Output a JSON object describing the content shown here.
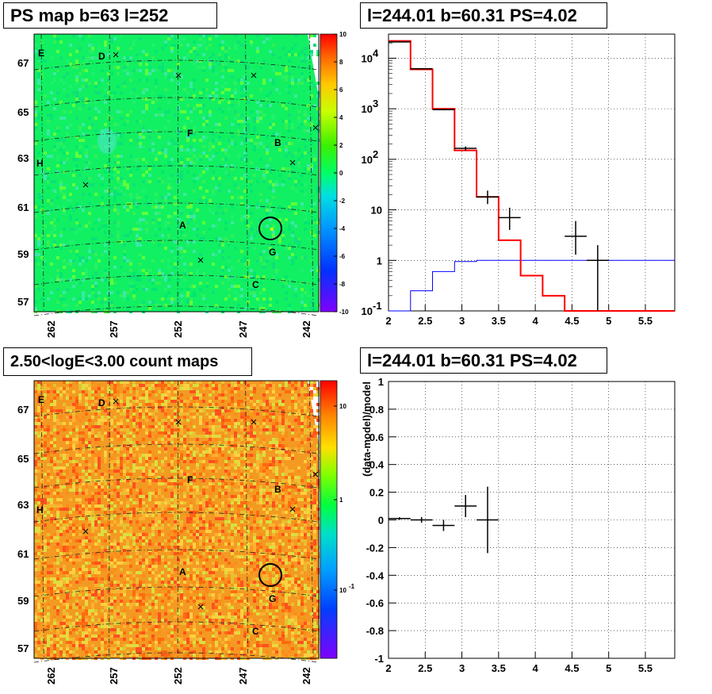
{
  "titles": {
    "ps_map": "PS map b=63 l=252",
    "spectrum": "l=244.01 b=60.31 PS=4.02",
    "count_maps": "2.50<logE<3.00 count maps",
    "residual": "l=244.01 b=60.31 PS=4.02"
  },
  "map_axes": {
    "lon_ticks": [
      "262",
      "257",
      "252",
      "247",
      "242"
    ],
    "lat_ticks": [
      "67",
      "65",
      "63",
      "61",
      "59",
      "57"
    ]
  },
  "source_labels": [
    "E",
    "D",
    "F",
    "B",
    "H",
    "A",
    "G",
    "C"
  ],
  "ps_colorbar_ticks": [
    "10",
    "8",
    "6",
    "4",
    "2",
    "0",
    "-2",
    "-4",
    "-6",
    "-8",
    "-10"
  ],
  "count_colorbar_ticks": [
    "10",
    "1",
    "10",
    "-1"
  ],
  "colors": {
    "ps_map_base": "#11f062",
    "count_map_base": "#f39a22",
    "model_line": "#ff0000",
    "background_line": "#0000ff",
    "data_points": "#000000"
  },
  "chart_data": [
    {
      "type": "heatmap",
      "title": "PS map b=63 l=252",
      "x_ticks": [
        "262",
        "257",
        "252",
        "247",
        "242"
      ],
      "y_ticks": [
        "67",
        "65",
        "63",
        "61",
        "59",
        "57"
      ],
      "z_range": [
        -10,
        10
      ],
      "annotations": [
        "E",
        "D",
        "F",
        "B",
        "H",
        "A",
        "G",
        "C"
      ]
    },
    {
      "type": "line",
      "title": "l=244.01 b=60.31 PS=4.02",
      "xlim": [
        2,
        5.9
      ],
      "ylim": [
        0.1,
        30000
      ],
      "y_scale": "log",
      "x_ticks": [
        "2",
        "2.5",
        "3",
        "3.5",
        "4",
        "4.5",
        "5",
        "5.5"
      ],
      "y_ticks": [
        "10^4",
        "10^3",
        "10^2",
        "10",
        "1",
        "10^-1"
      ],
      "series": [
        {
          "edges": [
            2.0,
            2.3,
            2.6,
            2.9,
            3.2,
            3.5,
            3.8,
            4.1,
            4.4,
            4.7,
            5.0,
            5.3,
            5.6,
            5.9
          ],
          "values": [
            22000,
            6000,
            1000,
            150,
            18,
            2.5,
            0.5,
            0.2,
            0.1,
            0.1,
            0.1,
            0.1,
            0.1
          ]
        },
        {
          "edges": [
            2.0,
            2.3,
            2.6,
            2.9,
            3.2,
            3.5,
            3.8,
            4.1,
            4.4,
            4.7,
            5.0,
            5.3,
            5.6,
            5.9
          ],
          "values": [
            0.1,
            0.25,
            0.6,
            0.95,
            1,
            1,
            1,
            1,
            1,
            1,
            1,
            1,
            1
          ]
        },
        {
          "points": [
            {
              "x": 2.15,
              "y": 21000,
              "xerr": 0.15,
              "ylo": 20500,
              "yhi": 21500
            },
            {
              "x": 2.45,
              "y": 6200,
              "xerr": 0.15,
              "ylo": 6050,
              "yhi": 6350
            },
            {
              "x": 2.75,
              "y": 960,
              "xerr": 0.15,
              "ylo": 930,
              "yhi": 990
            },
            {
              "x": 3.05,
              "y": 165,
              "xerr": 0.15,
              "ylo": 150,
              "yhi": 180
            },
            {
              "x": 3.35,
              "y": 18,
              "xerr": 0.15,
              "ylo": 13,
              "yhi": 24
            },
            {
              "x": 3.65,
              "y": 7,
              "xerr": 0.15,
              "ylo": 4,
              "yhi": 11
            },
            {
              "x": 4.55,
              "y": 3,
              "xerr": 0.15,
              "ylo": 1.3,
              "yhi": 6
            },
            {
              "x": 4.85,
              "y": 1,
              "xerr": 0.15,
              "ylo": 0.1,
              "yhi": 2
            }
          ]
        }
      ]
    },
    {
      "type": "heatmap",
      "title": "2.50<logE<3.00 count maps",
      "x_ticks": [
        "262",
        "257",
        "252",
        "247",
        "242"
      ],
      "y_ticks": [
        "67",
        "65",
        "63",
        "61",
        "59",
        "57"
      ],
      "z_scale": "log",
      "annotations": [
        "E",
        "D",
        "F",
        "B",
        "H",
        "A",
        "G",
        "C"
      ]
    },
    {
      "type": "scatter",
      "title": "l=244.01 b=60.31 PS=4.02",
      "ylabel": "(data-model)/model",
      "xlim": [
        2,
        5.9
      ],
      "ylim": [
        -1,
        1
      ],
      "x_ticks": [
        "2",
        "2.5",
        "3",
        "3.5",
        "4",
        "4.5",
        "5",
        "5.5"
      ],
      "y_ticks": [
        "1",
        "0.8",
        "0.6",
        "0.4",
        "0.2",
        "0",
        "-0.2",
        "-0.4",
        "-0.6",
        "-0.8",
        "-1"
      ],
      "points": [
        {
          "x": 2.15,
          "y": 0.01,
          "xerr": 0.15,
          "yerr": 0.01
        },
        {
          "x": 2.45,
          "y": 0.0,
          "xerr": 0.15,
          "yerr": 0.02
        },
        {
          "x": 2.75,
          "y": -0.04,
          "xerr": 0.15,
          "yerr": 0.04
        },
        {
          "x": 3.05,
          "y": 0.1,
          "xerr": 0.15,
          "yerr": 0.08
        },
        {
          "x": 3.35,
          "y": 0.0,
          "xerr": 0.15,
          "yerr": 0.24
        }
      ]
    }
  ]
}
